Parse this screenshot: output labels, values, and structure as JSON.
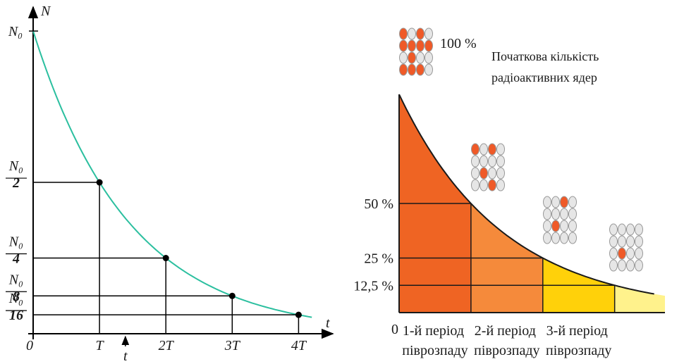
{
  "chart_data": [
    {
      "type": "decay-line",
      "y_axis_label": "N",
      "x_axis_label": "t",
      "origin_label": "0",
      "x": [
        1,
        2,
        3,
        4
      ],
      "values": [
        0.5,
        0.25,
        0.125,
        0.0625
      ],
      "color": "#2bbf9f",
      "xlim": [
        0,
        4.41
      ],
      "ylim": [
        0,
        1.07
      ],
      "xticks": [
        {
          "value": 1,
          "label": "T"
        },
        {
          "value": 2,
          "label": "2T"
        },
        {
          "value": 3,
          "label": "3T"
        },
        {
          "value": 4,
          "label": "4T"
        }
      ],
      "yticks": [
        {
          "value": 1,
          "label": "N₀"
        },
        {
          "value": 0.5,
          "label": "N₀/2"
        },
        {
          "value": 0.25,
          "label": "N₀/4"
        },
        {
          "value": 0.125,
          "label": "N₀/8"
        },
        {
          "value": 0.0625,
          "label": "N₀/16"
        }
      ],
      "annotation": {
        "x": 1.39,
        "label": "t"
      }
    },
    {
      "type": "decay-area",
      "origin_label": "0",
      "x": [
        0,
        1,
        2,
        3
      ],
      "values": [
        100,
        50,
        25,
        12.5
      ],
      "value_labels": [
        "100 %",
        "50 %",
        "25 %",
        "12,5 %"
      ],
      "categories": [
        "1-й період піврозпаду",
        "2-й період піврозпаду",
        "3-й період піврозпаду"
      ],
      "colors": [
        "#ef6423",
        "#f58a3b",
        "#ffd10a",
        "#fff28c"
      ],
      "xlim": [
        0,
        3.7
      ],
      "ylim": [
        0,
        100
      ],
      "annotation": [
        "Початкова кількість",
        "радіоактивних ядер"
      ]
    }
  ]
}
